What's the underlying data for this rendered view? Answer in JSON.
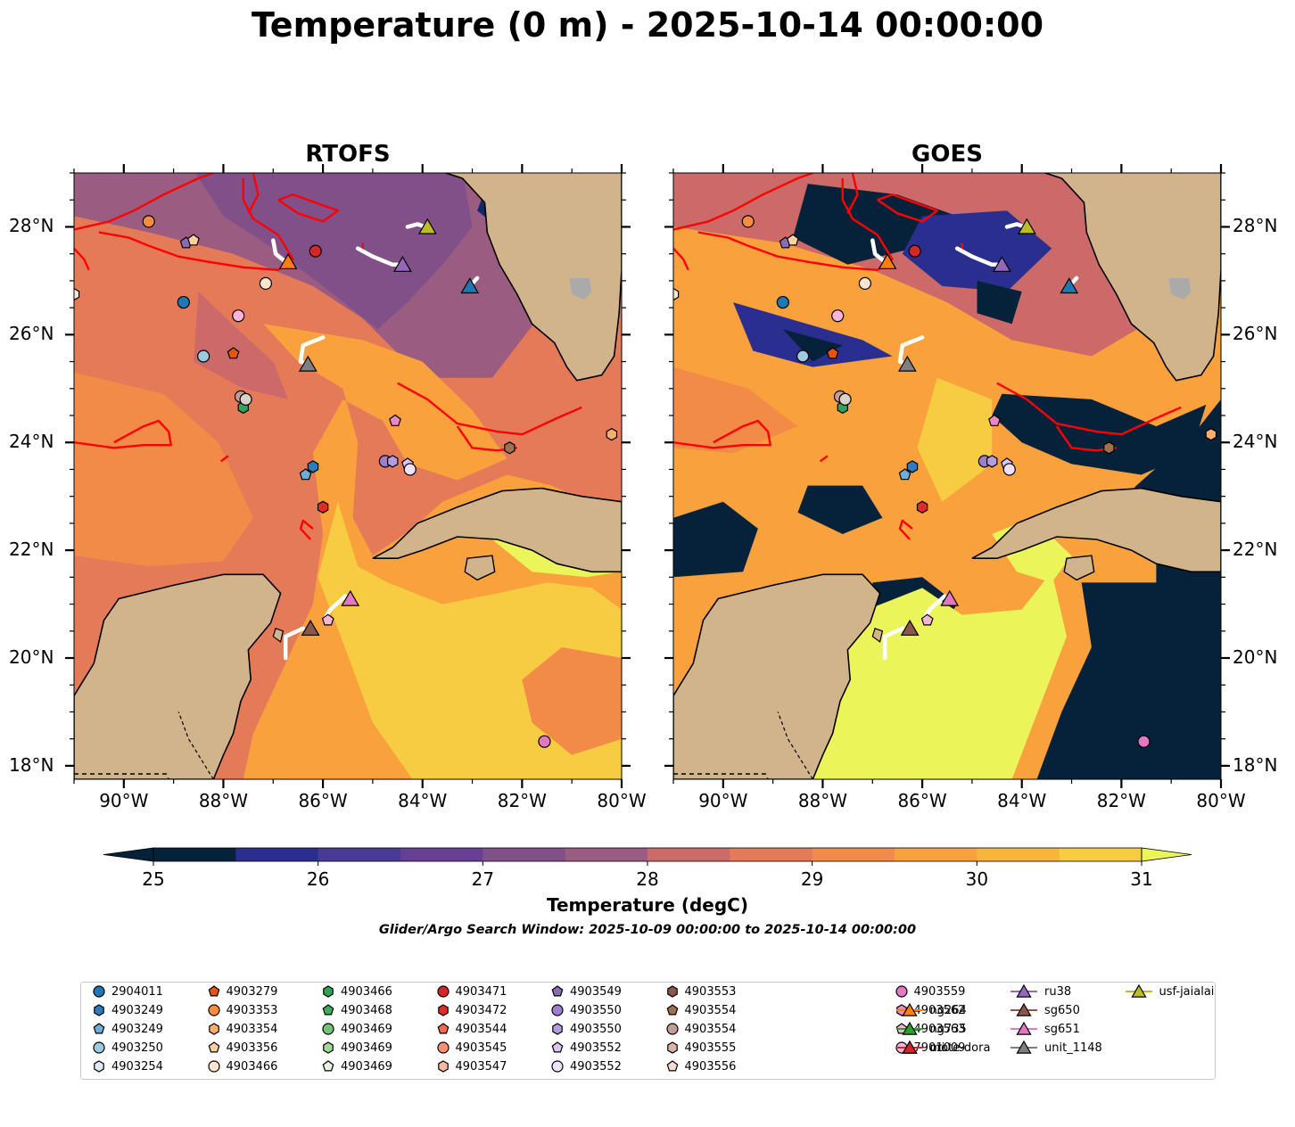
{
  "title": "Temperature (0 m) - 2025-10-14 00:00:00",
  "panels": [
    {
      "title": "RTOFS",
      "style": "model"
    },
    {
      "title": "GOES",
      "style": "satellite"
    }
  ],
  "axes": {
    "lat_labels": [
      "28°N",
      "26°N",
      "24°N",
      "22°N",
      "20°N",
      "18°N"
    ],
    "lon_labels": [
      "90°W",
      "88°W",
      "86°W",
      "84°W",
      "82°W",
      "80°W"
    ],
    "lon_range": [
      -91,
      -80
    ],
    "lat_range": [
      17.75,
      29
    ]
  },
  "colorbar": {
    "label": "Temperature (degC)",
    "ticks": [
      "25",
      "26",
      "27",
      "28",
      "29",
      "30",
      "31"
    ],
    "range": [
      25,
      31
    ],
    "extend": "both",
    "colors": [
      "#06223a",
      "#112a66",
      "#2a2f8f",
      "#4a3a98",
      "#673f95",
      "#825089",
      "#9b5c82",
      "#b36178",
      "#cc6969",
      "#e57a59",
      "#f28a48",
      "#f8a13d",
      "#f7b63b",
      "#f7cc40",
      "#ebf55a"
    ]
  },
  "search_window": "Glider/Argo Search Window: 2025-10-09 00:00:00 to 2025-10-14 00:00:00",
  "legend": [
    {
      "label": "2904011",
      "marker": "circle",
      "color": "#1f77b4"
    },
    {
      "label": "4903249",
      "marker": "hexagon",
      "color": "#2b7bbf"
    },
    {
      "label": "4903249",
      "marker": "pentagon",
      "color": "#6baed6"
    },
    {
      "label": "4903250",
      "marker": "circle",
      "color": "#9ecae1"
    },
    {
      "label": "4903254",
      "marker": "hexagon",
      "color": "#deebf7"
    },
    {
      "label": "4903279",
      "marker": "pentagon",
      "color": "#e6550d"
    },
    {
      "label": "4903353",
      "marker": "circle",
      "color": "#fd8d3c"
    },
    {
      "label": "4903354",
      "marker": "hexagon",
      "color": "#fdae6b"
    },
    {
      "label": "4903356",
      "marker": "pentagon",
      "color": "#fdd0a2"
    },
    {
      "label": "4903466",
      "marker": "circle",
      "color": "#fee6ce"
    },
    {
      "label": "4903466",
      "marker": "hexagon",
      "color": "#31a354"
    },
    {
      "label": "4903468",
      "marker": "pentagon",
      "color": "#41ab5d"
    },
    {
      "label": "4903469",
      "marker": "circle",
      "color": "#74c476"
    },
    {
      "label": "4903469",
      "marker": "hexagon",
      "color": "#a1d99b"
    },
    {
      "label": "4903469",
      "marker": "pentagon",
      "color": "#e5f5e0"
    },
    {
      "label": "4903471",
      "marker": "circle",
      "color": "#d62728"
    },
    {
      "label": "4903472",
      "marker": "hexagon",
      "color": "#de2d26"
    },
    {
      "label": "4903544",
      "marker": "pentagon",
      "color": "#fb6a4a"
    },
    {
      "label": "4903545",
      "marker": "circle",
      "color": "#fc9272"
    },
    {
      "label": "4903547",
      "marker": "hexagon",
      "color": "#fcbba1"
    },
    {
      "label": "4903549",
      "marker": "pentagon",
      "color": "#8c6bb1"
    },
    {
      "label": "4903550",
      "marker": "circle",
      "color": "#9e7fcf"
    },
    {
      "label": "4903550",
      "marker": "hexagon",
      "color": "#b39ddb"
    },
    {
      "label": "4903552",
      "marker": "pentagon",
      "color": "#d8c7f2"
    },
    {
      "label": "4903552",
      "marker": "circle",
      "color": "#f0e0ff"
    },
    {
      "label": "4903553",
      "marker": "hexagon",
      "color": "#8c564b"
    },
    {
      "label": "4903554",
      "marker": "pentagon",
      "color": "#a0704f"
    },
    {
      "label": "4903554",
      "marker": "circle",
      "color": "#c49c94"
    },
    {
      "label": "4903555",
      "marker": "hexagon",
      "color": "#d9b3a3"
    },
    {
      "label": "4903556",
      "marker": "pentagon",
      "color": "#f7dccf"
    },
    {
      "label": "4903559",
      "marker": "circle",
      "color": "#e377c2"
    },
    {
      "label": "4903562",
      "marker": "hexagon",
      "color": "#e78ac3"
    },
    {
      "label": "4903563",
      "marker": "pentagon",
      "color": "#f7b6d2"
    },
    {
      "label": "7901009",
      "marker": "circle",
      "color": "#fbb4d9"
    },
    {
      "label": "mote-dora",
      "marker": "triangle-line",
      "color": "#1f77b4"
    },
    {
      "label": "ng264",
      "marker": "triangle-line",
      "color": "#ff7f0e"
    },
    {
      "label": "ng735",
      "marker": "triangle-line",
      "color": "#2ca02c"
    },
    {
      "label": "ori",
      "marker": "triangle-line",
      "color": "#d62728"
    },
    {
      "label": "ru38",
      "marker": "triangle-line",
      "color": "#9467bd"
    },
    {
      "label": "sg650",
      "marker": "triangle-line",
      "color": "#8c564b"
    },
    {
      "label": "sg651",
      "marker": "triangle-line",
      "color": "#e377c2"
    },
    {
      "label": "unit_1148",
      "marker": "triangle-line",
      "color": "#7f7f7f"
    },
    {
      "label": "usf-jaialai",
      "marker": "triangle-line",
      "color": "#bcbd22"
    }
  ],
  "floats": [
    {
      "lon": -89.5,
      "lat": 28.1,
      "marker": "circle",
      "color": "#fd8d3c"
    },
    {
      "lon": -88.75,
      "lat": 27.7,
      "marker": "pentagon",
      "color": "#8c6bb1"
    },
    {
      "lon": -88.6,
      "lat": 27.75,
      "marker": "pentagon",
      "color": "#fdd0a2"
    },
    {
      "lon": -88.8,
      "lat": 26.6,
      "marker": "circle",
      "color": "#1f77b4"
    },
    {
      "lon": -88.4,
      "lat": 25.6,
      "marker": "circle",
      "color": "#9ecae1"
    },
    {
      "lon": -87.8,
      "lat": 25.65,
      "marker": "pentagon",
      "color": "#e6550d"
    },
    {
      "lon": -87.7,
      "lat": 26.35,
      "marker": "circle",
      "color": "#fbb4d9"
    },
    {
      "lon": -87.15,
      "lat": 26.95,
      "marker": "circle",
      "color": "#fee6ce"
    },
    {
      "lon": -86.15,
      "lat": 27.55,
      "marker": "circle",
      "color": "#d62728"
    },
    {
      "lon": -87.6,
      "lat": 24.65,
      "marker": "hexagon",
      "color": "#31a354"
    },
    {
      "lon": -87.65,
      "lat": 24.85,
      "marker": "circle",
      "color": "#c49c94"
    },
    {
      "lon": -87.55,
      "lat": 24.8,
      "marker": "circle",
      "color": "#d9d3c7"
    },
    {
      "lon": -86.2,
      "lat": 23.55,
      "marker": "hexagon",
      "color": "#2b7bbf"
    },
    {
      "lon": -86.35,
      "lat": 23.4,
      "marker": "pentagon",
      "color": "#6baed6"
    },
    {
      "lon": -86.0,
      "lat": 22.8,
      "marker": "hexagon",
      "color": "#de2d26"
    },
    {
      "lon": -84.55,
      "lat": 24.4,
      "marker": "pentagon",
      "color": "#e78ac3"
    },
    {
      "lon": -84.75,
      "lat": 23.65,
      "marker": "circle",
      "color": "#9e7fcf"
    },
    {
      "lon": -84.6,
      "lat": 23.65,
      "marker": "hexagon",
      "color": "#b39ddb"
    },
    {
      "lon": -84.3,
      "lat": 23.6,
      "marker": "pentagon",
      "color": "#d8c7f2"
    },
    {
      "lon": -84.25,
      "lat": 23.5,
      "marker": "circle",
      "color": "#f0e0ff"
    },
    {
      "lon": -82.25,
      "lat": 23.9,
      "marker": "hexagon",
      "color": "#a0704f"
    },
    {
      "lon": -80.2,
      "lat": 24.15,
      "marker": "hexagon",
      "color": "#fdae6b"
    },
    {
      "lon": -91.0,
      "lat": 26.75,
      "marker": "hexagon",
      "color": "#fee6ce"
    },
    {
      "lon": -85.9,
      "lat": 20.7,
      "marker": "pentagon",
      "color": "#f7b6d2"
    },
    {
      "lon": -81.55,
      "lat": 18.45,
      "marker": "circle",
      "color": "#e377c2"
    }
  ],
  "gliders": [
    {
      "name": "usf-jaialai",
      "lon": -83.9,
      "lat": 28.0,
      "color": "#bcbd22",
      "track": [
        [
          -84.3,
          28.0
        ],
        [
          -84.1,
          28.05
        ],
        [
          -83.95,
          28.0
        ]
      ]
    },
    {
      "name": "ru38",
      "lon": -84.4,
      "lat": 27.3,
      "color": "#9467bd",
      "track": [
        [
          -85.3,
          27.6
        ],
        [
          -85.0,
          27.45
        ],
        [
          -84.6,
          27.3
        ],
        [
          -84.4,
          27.3
        ]
      ]
    },
    {
      "name": "mote-dora",
      "lon": -83.05,
      "lat": 26.9,
      "color": "#1f77b4",
      "track": [
        [
          -82.9,
          27.05
        ],
        [
          -83.05,
          26.9
        ]
      ]
    },
    {
      "name": "ng264",
      "lon": -86.7,
      "lat": 27.35,
      "color": "#ff7f0e",
      "track": [
        [
          -87.0,
          27.75
        ],
        [
          -86.95,
          27.5
        ],
        [
          -86.75,
          27.35
        ]
      ]
    },
    {
      "name": "unit_1148",
      "lon": -86.3,
      "lat": 25.45,
      "color": "#7f7f7f",
      "track": [
        [
          -86.0,
          25.95
        ],
        [
          -86.4,
          25.8
        ],
        [
          -86.45,
          25.5
        ],
        [
          -86.3,
          25.45
        ]
      ]
    },
    {
      "name": "sg651",
      "lon": -85.45,
      "lat": 21.1,
      "color": "#e377c2",
      "track": [
        [
          -85.55,
          21.15
        ],
        [
          -85.85,
          20.9
        ],
        [
          -85.95,
          20.75
        ]
      ]
    },
    {
      "name": "sg650",
      "lon": -86.25,
      "lat": 20.55,
      "color": "#8c564b",
      "track": [
        [
          -86.4,
          20.55
        ],
        [
          -86.75,
          20.4
        ],
        [
          -86.75,
          20.0
        ]
      ]
    }
  ],
  "map_labels": {
    "land_color": "#d2b48c",
    "lake_color": "#aaaaaa",
    "glider_track_color": "#ffffff",
    "front_color": "#ff0000"
  }
}
